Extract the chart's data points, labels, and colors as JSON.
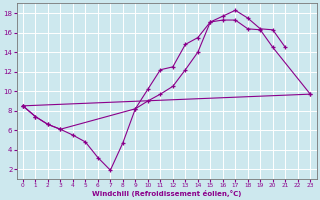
{
  "xlabel": "Windchill (Refroidissement éolien,°C)",
  "background_color": "#cde8ee",
  "grid_color": "#ffffff",
  "line_color": "#8b008b",
  "xlim": [
    -0.5,
    23.5
  ],
  "ylim": [
    1,
    19
  ],
  "xticks": [
    0,
    1,
    2,
    3,
    4,
    5,
    6,
    7,
    8,
    9,
    10,
    11,
    12,
    13,
    14,
    15,
    16,
    17,
    18,
    19,
    20,
    21,
    22,
    23
  ],
  "yticks": [
    2,
    4,
    6,
    8,
    10,
    12,
    14,
    16,
    18
  ],
  "line1_x": [
    0,
    1,
    2,
    3,
    4,
    5,
    6,
    7,
    8,
    9,
    10,
    11,
    12,
    13,
    14,
    15,
    16,
    17,
    18,
    19,
    20,
    21
  ],
  "line1_y": [
    8.5,
    7.4,
    6.6,
    6.1,
    5.5,
    4.8,
    3.2,
    1.9,
    4.7,
    8.2,
    10.2,
    12.2,
    12.5,
    14.8,
    15.5,
    17.1,
    17.7,
    18.3,
    17.5,
    16.4,
    16.3,
    14.5
  ],
  "line2_x": [
    0,
    23
  ],
  "line2_y": [
    8.5,
    9.7
  ],
  "line3_x": [
    0,
    1,
    2,
    3,
    9,
    10,
    11,
    12,
    13,
    14,
    15,
    16,
    17,
    18,
    19,
    20,
    23
  ],
  "line3_y": [
    8.5,
    7.4,
    6.6,
    6.1,
    8.2,
    9.0,
    9.7,
    10.5,
    12.2,
    14.0,
    17.1,
    17.3,
    17.3,
    16.4,
    16.3,
    14.5,
    9.7
  ]
}
